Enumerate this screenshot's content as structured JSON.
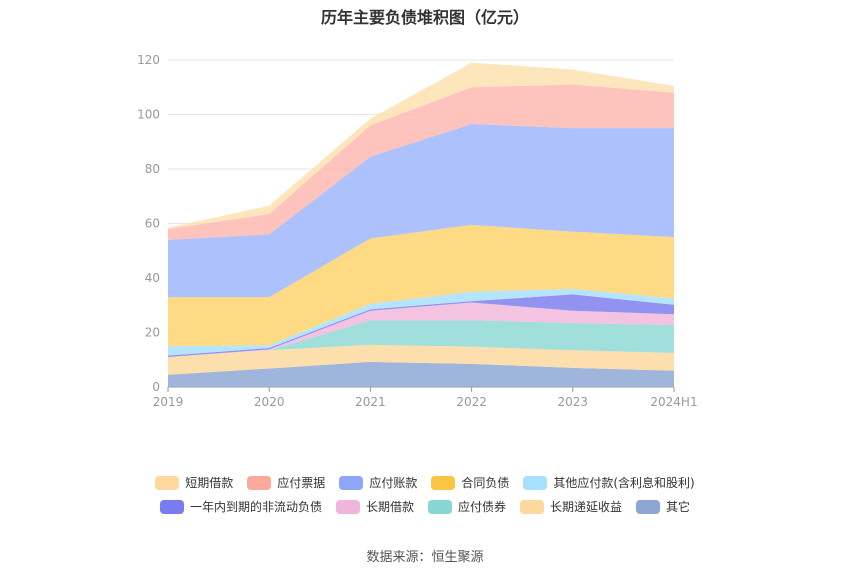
{
  "title": "历年主要负债堆积图（亿元）",
  "source": "数据来源：恒生聚源",
  "chart_data": {
    "type": "area",
    "stacked": true,
    "categories": [
      "2019",
      "2020",
      "2021",
      "2022",
      "2023",
      "2024H1"
    ],
    "ylim": [
      0,
      120
    ],
    "yticks": [
      0,
      20,
      40,
      60,
      80,
      100,
      120
    ],
    "grid": true,
    "legend_position": "bottom",
    "series": [
      {
        "name": "其它",
        "color": "#8fa8d6",
        "values": [
          4.5,
          6.8,
          9.2,
          8.5,
          7.0,
          6.0
        ]
      },
      {
        "name": "长期递延收益",
        "color": "#fdd9a0",
        "values": [
          6.5,
          6.7,
          6.3,
          6.3,
          6.5,
          6.5
        ]
      },
      {
        "name": "应付债券",
        "color": "#8fd9d6",
        "values": [
          0.0,
          0.0,
          9.0,
          9.7,
          10.0,
          10.2
        ]
      },
      {
        "name": "长期借款",
        "color": "#f2b8dc",
        "values": [
          0.0,
          0.3,
          3.5,
          6.5,
          4.5,
          4.0
        ]
      },
      {
        "name": "一年内到期的非流动负债",
        "color": "#7f7fef",
        "values": [
          0.5,
          0.5,
          0.5,
          0.5,
          6.0,
          3.5
        ]
      },
      {
        "name": "其他应付款(含利息和股利)",
        "color": "#a8e0fb",
        "values": [
          3.5,
          1.0,
          2.0,
          3.5,
          2.0,
          2.3
        ]
      },
      {
        "name": "合同负债",
        "color": "#ffd36e",
        "values": [
          18.0,
          17.7,
          24.0,
          24.5,
          21.0,
          22.5
        ]
      },
      {
        "name": "应付账款",
        "color": "#9fb6fb",
        "values": [
          21.0,
          23.0,
          30.0,
          37.0,
          38.0,
          40.0
        ]
      },
      {
        "name": "应付票据",
        "color": "#fdb8b0",
        "values": [
          4.0,
          7.5,
          11.5,
          13.5,
          16.0,
          13.0
        ]
      },
      {
        "name": "短期借款",
        "color": "#fee2b0",
        "values": [
          0.5,
          3.0,
          2.5,
          9.0,
          5.5,
          2.5
        ]
      }
    ]
  },
  "legend": {
    "row1": [
      {
        "name": "短期借款",
        "color": "#fdd9a0"
      },
      {
        "name": "应付票据",
        "color": "#fba99a"
      },
      {
        "name": "应付账款",
        "color": "#8ea6f7"
      },
      {
        "name": "合同负债",
        "color": "#fbc443"
      },
      {
        "name": "其他应付款(含利息和股利)",
        "color": "#a8e0fb"
      }
    ],
    "row2": [
      {
        "name": "一年内到期的非流动负债",
        "color": "#7b7bf0"
      },
      {
        "name": "长期借款",
        "color": "#efb6da"
      },
      {
        "name": "应付债券",
        "color": "#86d6d3"
      },
      {
        "name": "长期递延收益",
        "color": "#fdd9a0"
      },
      {
        "name": "其它",
        "color": "#8ea6d2"
      }
    ]
  }
}
